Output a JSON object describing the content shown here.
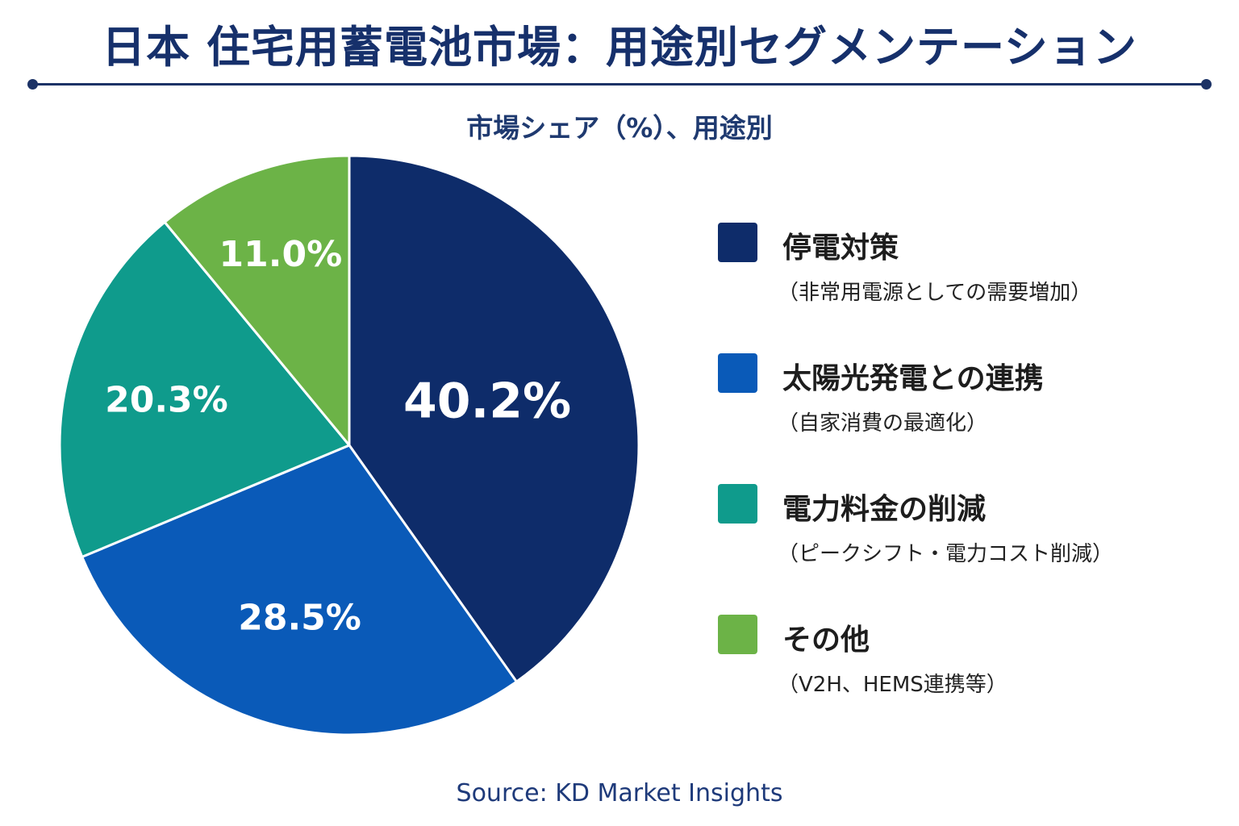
{
  "title": "日本 住宅用蓄電池市場：用途別セグメンテーション",
  "subtitle": "市場シェア（%）、用途別",
  "source": "Source: KD Market Insights",
  "chart_data": {
    "type": "pie",
    "unit": "%",
    "slices": [
      {
        "name": "停電対策",
        "description": "（非常用電源としての需要増加）",
        "value": 40.2,
        "label": "40.2%",
        "color": "#0e2c6a"
      },
      {
        "name": "太陽光発電との連携",
        "description": "（自家消費の最適化）",
        "value": 28.5,
        "label": "28.5%",
        "color": "#0a5ab8"
      },
      {
        "name": "電力料金の削減",
        "description": "（ピークシフト・電力コスト削減）",
        "value": 20.3,
        "label": "20.3%",
        "color": "#0f9b8c"
      },
      {
        "name": "その他",
        "description": "（V2H、HEMS連携等）",
        "value": 11.0,
        "label": "11.0%",
        "color": "#6cb347"
      }
    ],
    "start_position": "12 o'clock",
    "direction": "clockwise",
    "legend_position": "right"
  }
}
